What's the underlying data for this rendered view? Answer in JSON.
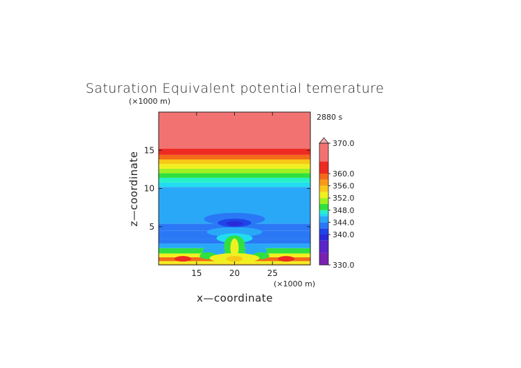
{
  "chart_data": {
    "type": "heatmap",
    "title": "Saturation Equivalent potential temerature",
    "time_label": "2880 s",
    "xlabel": "x—coordinate",
    "ylabel": "z—coordinate",
    "x_unit": "(×1000 m)",
    "y_unit": "(×1000 m)",
    "xlim": [
      10,
      30
    ],
    "ylim": [
      0,
      20
    ],
    "x_ticks": [
      15,
      20,
      25
    ],
    "y_ticks": [
      5,
      10,
      15
    ],
    "colorbar": {
      "min": 330.0,
      "max": 370.0,
      "extend": "max",
      "tick_values": [
        330.0,
        340.0,
        344.0,
        348.0,
        352.0,
        356.0,
        360.0,
        370.0
      ],
      "tick_labels": [
        "330.0",
        "340.0",
        "344.0",
        "348.0",
        "352.0",
        "356.0",
        "360.0",
        "370.0"
      ]
    },
    "layers": [
      {
        "z": [
          0,
          0.2
        ],
        "value": 354
      },
      {
        "z": [
          0.2,
          0.5
        ],
        "value": 352
      },
      {
        "z": [
          0.5,
          1.0
        ],
        "value": 358
      },
      {
        "z": [
          1.0,
          1.5
        ],
        "value": 352
      },
      {
        "z": [
          1.5,
          2.2
        ],
        "value": 348
      },
      {
        "z": [
          2.2,
          2.8
        ],
        "value": 345
      },
      {
        "z": [
          2.8,
          3.4
        ],
        "value": 343.5
      },
      {
        "z": [
          3.4,
          4.5
        ],
        "value": 342.5
      },
      {
        "z": [
          4.5,
          5.4
        ],
        "value": 343.5
      },
      {
        "z": [
          5.4,
          10.2
        ],
        "value": 345
      },
      {
        "z": [
          10.2,
          10.8
        ],
        "value": 346.5
      },
      {
        "z": [
          10.8,
          11.4
        ],
        "value": 347.5
      },
      {
        "z": [
          11.4,
          12.0
        ],
        "value": 349
      },
      {
        "z": [
          12.0,
          12.6
        ],
        "value": 351
      },
      {
        "z": [
          12.6,
          13.2
        ],
        "value": 353
      },
      {
        "z": [
          13.2,
          13.8
        ],
        "value": 355
      },
      {
        "z": [
          13.8,
          14.4
        ],
        "value": 358
      },
      {
        "z": [
          14.4,
          15.2
        ],
        "value": 362
      },
      {
        "z": [
          15.2,
          20.0
        ],
        "value": 366
      }
    ]
  }
}
